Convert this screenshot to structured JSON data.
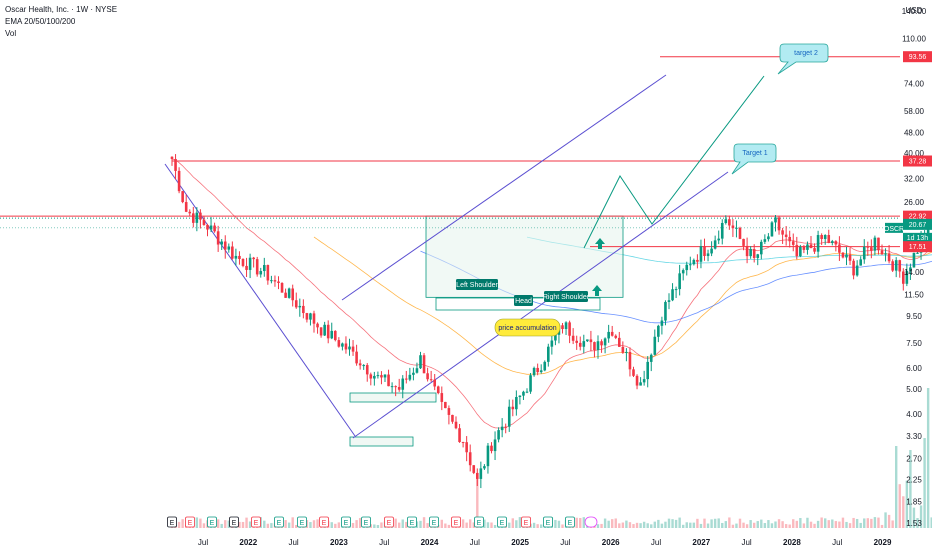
{
  "header": {
    "symbol_line": "Oscar Health, Inc. · 1W · NYSE",
    "indicator": "EMA 20/50/100/200",
    "volume": "Vol"
  },
  "currency": "USD",
  "colors": {
    "up": "#089981",
    "down": "#f23645",
    "channel": "#5b4fd1",
    "target_line": "#f23645",
    "projection": "#089981",
    "box_fill": "#e6f4ec",
    "box_stroke": "#089981"
  },
  "chart_data": {
    "type": "candlestick",
    "y_scale": "log",
    "ylim": [
      1.5,
      160
    ],
    "y_ticks": [
      1.53,
      1.85,
      2.25,
      2.7,
      3.3,
      4.0,
      5.0,
      6.0,
      7.5,
      9.5,
      11.5,
      14.0,
      17.51,
      22.92,
      26.0,
      32.0,
      37.28,
      40.0,
      48.0,
      58.0,
      74.0,
      93.56,
      110.0,
      140.0
    ],
    "x_ticks": [
      "Jul",
      "2022",
      "Jul",
      "2023",
      "Jul",
      "2024",
      "Jul",
      "2025",
      "Jul",
      "2026",
      "Jul",
      "2027",
      "Jul",
      "2028",
      "Jul",
      "2029"
    ],
    "price_tags": [
      {
        "label": "93.56",
        "value": 93.56,
        "color": "#f23645"
      },
      {
        "label": "37.28",
        "value": 37.28,
        "color": "#f23645"
      },
      {
        "label": "22.92",
        "value": 22.92,
        "color": "#f23645"
      },
      {
        "label": "OSCR",
        "value": 20.67,
        "color": "#089981"
      },
      {
        "label": "20.67",
        "value": 20.67,
        "color": "#089981"
      },
      {
        "label": "1d 13h",
        "value": 20.67,
        "color": "#089981"
      },
      {
        "label": "17.51",
        "value": 17.51,
        "color": "#f23645"
      }
    ],
    "last_price": 20.67,
    "countdown": "1d 13h",
    "horizontal_levels": [
      93.56,
      37.28,
      22.92,
      17.51
    ],
    "anchors": [
      {
        "t": 0,
        "p": 38
      },
      {
        "t": 4,
        "p": 24
      },
      {
        "t": 10,
        "p": 21
      },
      {
        "t": 18,
        "p": 16
      },
      {
        "t": 26,
        "p": 14
      },
      {
        "t": 34,
        "p": 11
      },
      {
        "t": 42,
        "p": 8.5
      },
      {
        "t": 50,
        "p": 7
      },
      {
        "t": 58,
        "p": 5.5
      },
      {
        "t": 64,
        "p": 5
      },
      {
        "t": 70,
        "p": 6.5
      },
      {
        "t": 76,
        "p": 4.2
      },
      {
        "t": 82,
        "p": 3.2
      },
      {
        "t": 86,
        "p": 2.2
      },
      {
        "t": 90,
        "p": 3.1
      },
      {
        "t": 96,
        "p": 4.2
      },
      {
        "t": 104,
        "p": 6.3
      },
      {
        "t": 110,
        "p": 8.8
      },
      {
        "t": 118,
        "p": 7.2
      },
      {
        "t": 124,
        "p": 8.5
      },
      {
        "t": 132,
        "p": 5.2
      },
      {
        "t": 138,
        "p": 9.8
      },
      {
        "t": 146,
        "p": 15.5
      },
      {
        "t": 152,
        "p": 18
      },
      {
        "t": 156,
        "p": 22.5
      },
      {
        "t": 164,
        "p": 15.5
      },
      {
        "t": 170,
        "p": 21.5
      },
      {
        "t": 176,
        "p": 16
      },
      {
        "t": 184,
        "p": 19
      },
      {
        "t": 192,
        "p": 14.5
      },
      {
        "t": 198,
        "p": 18.5
      },
      {
        "t": 206,
        "p": 13.5
      },
      {
        "t": 214,
        "p": 22
      },
      {
        "t": 220,
        "p": 15
      },
      {
        "t": 226,
        "p": 21.5
      },
      {
        "t": 230,
        "p": 20.67
      }
    ],
    "annotations": {
      "target_2": "target 2",
      "target_1": "Target 1",
      "left_shoulder": "Left Shoulder",
      "head": "Head",
      "right_shoulder": "Right Shoulder",
      "price_accumulation": "price accumulation"
    },
    "event_markers": [
      "E",
      "E",
      "E",
      "E",
      "E",
      "E",
      "E",
      "E",
      "E",
      "E",
      "E",
      "E",
      "E",
      "E",
      "E",
      "E",
      "E",
      "E",
      "E"
    ]
  }
}
